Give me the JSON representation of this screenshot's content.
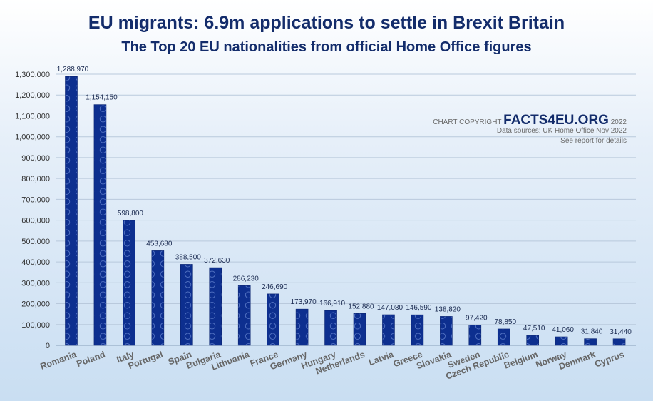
{
  "title": "EU migrants: 6.9m applications to settle in Brexit Britain",
  "subtitle": "The Top 20 EU nationalities from official Home Office figures",
  "copyright": {
    "prefix": "CHART COPYRIGHT",
    "brand": "FACTS4EU.ORG",
    "year": "2022",
    "source": "Data sources: UK Home Office Nov 2022",
    "note": "See report for details"
  },
  "colors": {
    "bar": "#0d2f8f",
    "title": "#132c6b",
    "grid": "#b9c9dc"
  },
  "chart_data": {
    "type": "bar",
    "title": "EU migrants: 6.9m applications to settle in Brexit Britain",
    "categories": [
      "Romania",
      "Poland",
      "Italy",
      "Portugal",
      "Spain",
      "Bulgaria",
      "Lithuania",
      "France",
      "Germany",
      "Hungary",
      "Netherlands",
      "Latvia",
      "Greece",
      "Slovakia",
      "Sweden",
      "Czech Republic",
      "Belgium",
      "Norway",
      "Denmark",
      "Cyprus"
    ],
    "values": [
      1288970,
      1154150,
      598800,
      453680,
      388500,
      372630,
      286230,
      246690,
      173970,
      166910,
      152880,
      147080,
      146590,
      138820,
      97420,
      78850,
      47510,
      41060,
      31840,
      31440
    ],
    "value_labels": [
      "1,288,970",
      "1,154,150",
      "598,800",
      "453,680",
      "388,500",
      "372,630",
      "286,230",
      "246,690",
      "173,970",
      "166,910",
      "152,880",
      "147,080",
      "146,590",
      "138,820",
      "97,420",
      "78,850",
      "47,510",
      "41,060",
      "31,840",
      "31,440"
    ],
    "yticks": [
      "0",
      "100,000",
      "200,000",
      "300,000",
      "400,000",
      "500,000",
      "600,000",
      "700,000",
      "800,000",
      "900,000",
      "1,000,000",
      "1,100,000",
      "1,200,000",
      "1,300,000"
    ],
    "ylim": [
      0,
      1300000
    ],
    "grid": true,
    "xlabel": "",
    "ylabel": ""
  }
}
